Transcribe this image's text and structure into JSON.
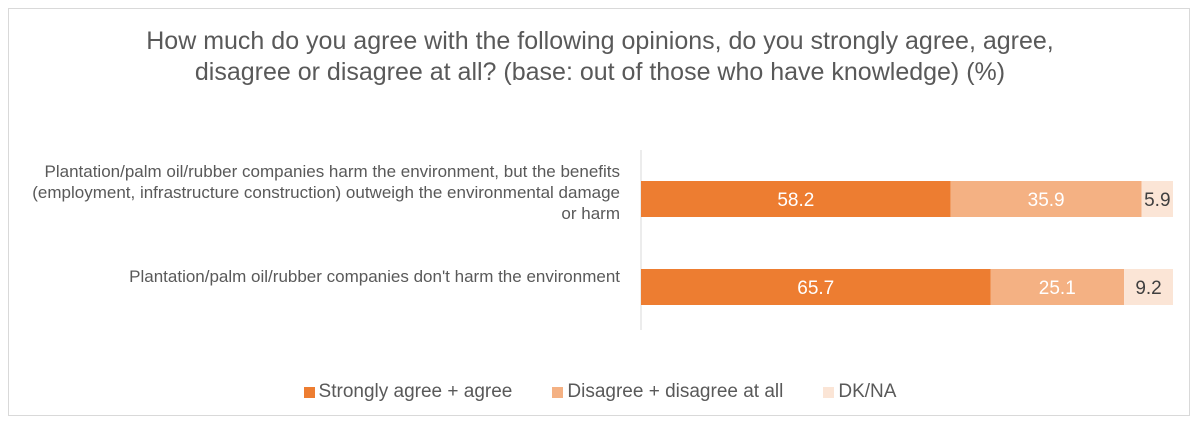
{
  "chart_data": {
    "type": "bar",
    "orientation": "horizontal",
    "stacked": true,
    "title": "How much do you agree with the following opinions, do you strongly agree, agree, disagree or disagree at all? (base: out of those who have knowledge) (%)",
    "categories": [
      "Plantation/palm oil/rubber companies harm the environment, but the benefits (employment, infrastructure construction) outweigh the environmental damage or harm",
      "Plantation/palm oil/rubber companies don't harm the environment"
    ],
    "series": [
      {
        "name": "Strongly agree + agree",
        "values": [
          58.2,
          65.7
        ],
        "color": "#ed7d31",
        "label_color": "#ffffff"
      },
      {
        "name": "Disagree + disagree at all",
        "values": [
          35.9,
          25.1
        ],
        "color": "#f4b183",
        "label_color": "#ffffff"
      },
      {
        "name": "DK/NA",
        "values": [
          5.9,
          9.2
        ],
        "color": "#fbe5d6",
        "label_color": "#404040"
      }
    ],
    "xlim": [
      0,
      100
    ],
    "grid": false,
    "legend_position": "bottom"
  }
}
